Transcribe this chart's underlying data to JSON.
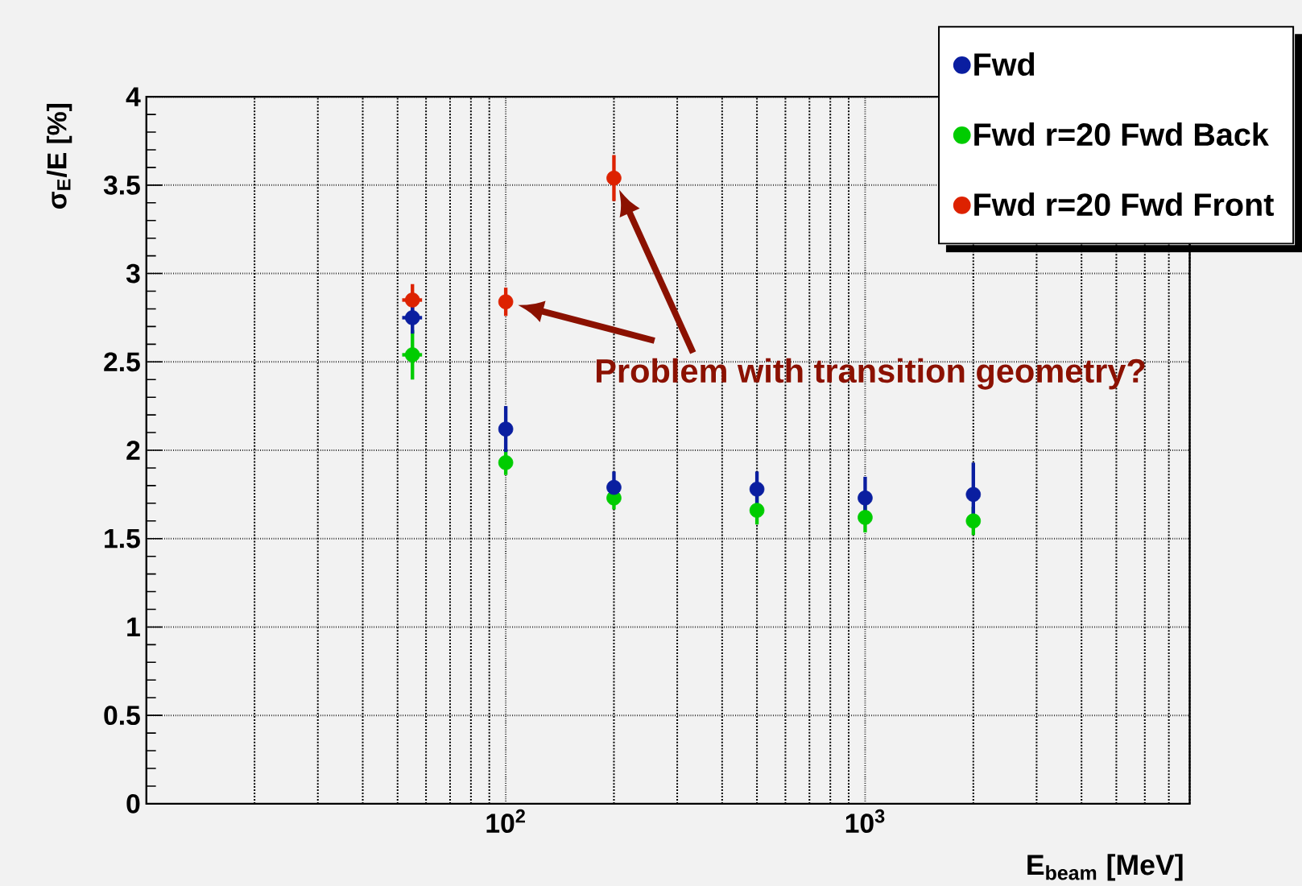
{
  "chart_data": {
    "type": "scatter",
    "xlabel": "E$_{beam}$ [MeV]",
    "ylabel": "σ$_{E}$/E [%]",
    "x": [
      55,
      100,
      200,
      500,
      1000,
      2000
    ],
    "series": [
      {
        "name": "Fwd",
        "color": "#0a1ea0",
        "values": [
          2.75,
          2.12,
          1.79,
          1.78,
          1.73,
          1.75
        ],
        "errors": [
          0.09,
          0.13,
          0.09,
          0.1,
          0.12,
          0.18
        ],
        "xerrors": [
          3.5,
          null,
          null,
          null,
          null,
          null
        ]
      },
      {
        "name": "Fwd r=20 Fwd Back",
        "color": "#00cc00",
        "values": [
          2.54,
          1.93,
          1.73,
          1.66,
          1.62,
          1.6
        ],
        "errors": [
          0.14,
          0.07,
          0.065,
          0.08,
          0.085,
          0.08
        ],
        "xerrors": [
          3.5,
          null,
          null,
          null,
          null,
          null
        ]
      },
      {
        "name": "Fwd r=20 Fwd Front",
        "color": "#dd2200",
        "x": [
          55,
          100,
          200
        ],
        "values": [
          2.85,
          2.84,
          3.54
        ],
        "errors": [
          0.09,
          0.08,
          0.13
        ],
        "xerrors": [
          3.5,
          null,
          null
        ]
      }
    ],
    "log": "x",
    "xlim": [
      10,
      8000
    ],
    "ylim": [
      0,
      4
    ],
    "xticks": [
      {
        "value": 100,
        "label": "10$^{2}$"
      },
      {
        "value": 1000,
        "label": "10$^{3}$"
      }
    ],
    "yticks": [
      0,
      0.5,
      1,
      1.5,
      2,
      2.5,
      3,
      3.5,
      4
    ],
    "grid": true,
    "legend": "top right",
    "marker": "circle",
    "annotations": [
      "Problem with transition geometry?"
    ]
  }
}
